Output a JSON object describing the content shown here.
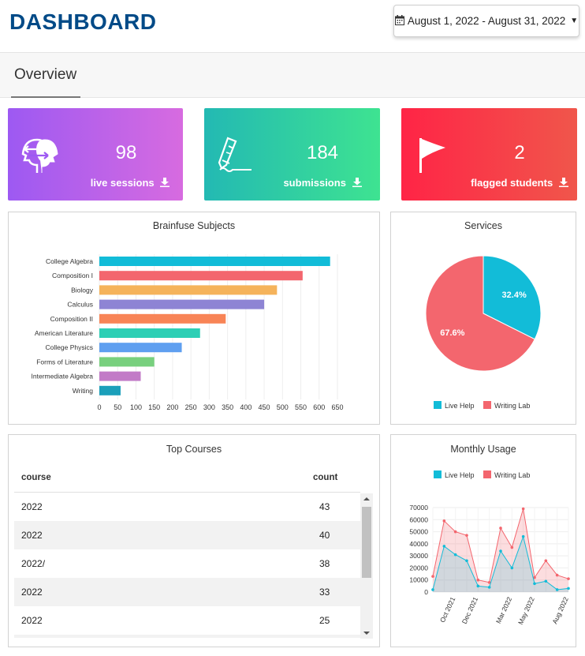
{
  "header": {
    "title": "DASHBOARD",
    "date_range": "August 1, 2022 - August 31, 2022",
    "calendar_icon": "calendar-icon",
    "caret_icon": "caret-down-icon"
  },
  "tabs": [
    {
      "label": "Overview",
      "active": true
    }
  ],
  "cards": [
    {
      "value": "98",
      "label": "live sessions",
      "icon": "head-exchange-icon",
      "colors": [
        "#9d59f2",
        "#d76be0"
      ]
    },
    {
      "value": "184",
      "label": "submissions",
      "icon": "pencil-writing-icon",
      "colors": [
        "#23b9b3",
        "#3ee391"
      ]
    },
    {
      "value": "2",
      "label": "flagged students",
      "icon": "flag-icon",
      "colors": [
        "#ff2446",
        "#f0564b"
      ]
    }
  ],
  "subjects_chart": {
    "title": "Brainfuse Subjects",
    "chart_data": {
      "type": "bar",
      "orientation": "horizontal",
      "categories": [
        "College Algebra",
        "Composition I",
        "Biology",
        "Calculus",
        "Composition II",
        "American Literature",
        "College Physics",
        "Forms of Literature",
        "Intermediate Algebra",
        "Writing"
      ],
      "values": [
        630,
        555,
        485,
        450,
        345,
        275,
        225,
        150,
        113,
        58
      ],
      "colors": [
        "#12bcd8",
        "#f3666e",
        "#f5b35b",
        "#8e84d4",
        "#f88456",
        "#2dcfb5",
        "#5f9ff0",
        "#78d07e",
        "#c27bc7",
        "#1b9fba"
      ],
      "xticks": [
        "0",
        "50",
        "100",
        "150",
        "200",
        "250",
        "300",
        "350",
        "400",
        "450",
        "500",
        "550",
        "600",
        "650"
      ],
      "xlim": [
        0,
        650
      ],
      "grid": true
    }
  },
  "services_chart": {
    "title": "Services",
    "chart_data": {
      "type": "pie",
      "slices": [
        {
          "name": "Live Help",
          "value": 32.4,
          "label": "32.4%",
          "color": "#12bcd8"
        },
        {
          "name": "Writing Lab",
          "value": 67.6,
          "label": "67.6%",
          "color": "#f3666e"
        }
      ],
      "legend": "bottom"
    }
  },
  "top_courses": {
    "title": "Top Courses",
    "columns": [
      "course",
      "count"
    ],
    "rows": [
      {
        "course": "2022",
        "count": "43"
      },
      {
        "course": "2022",
        "count": "40"
      },
      {
        "course": "2022/",
        "count": "38"
      },
      {
        "course": "2022",
        "count": "33"
      },
      {
        "course": "2022",
        "count": "25"
      }
    ]
  },
  "monthly_usage": {
    "title": "Monthly Usage",
    "chart_data": {
      "type": "area",
      "legend": "top",
      "xticks": [
        "Oct 2021",
        "Dec 2021",
        "Mar 2022",
        "May 2022",
        "Aug 2022"
      ],
      "yticks": [
        "0",
        "10000",
        "20000",
        "30000",
        "40000",
        "50000",
        "60000",
        "70000"
      ],
      "ylim": [
        0,
        70000
      ],
      "series": [
        {
          "name": "Live Help",
          "color": "#12bcd8",
          "values": [
            2000,
            38000,
            31000,
            26000,
            5000,
            4000,
            34000,
            20000,
            46000,
            7000,
            9000,
            2000,
            3000
          ]
        },
        {
          "name": "Writing Lab",
          "color": "#f3666e",
          "values": [
            13000,
            59000,
            50000,
            47000,
            10000,
            8000,
            53000,
            37000,
            69000,
            12000,
            26000,
            14000,
            11000
          ]
        }
      ]
    }
  },
  "scrollbar": {
    "up_icon": "scroll-up-icon",
    "down_icon": "scroll-down-icon"
  }
}
